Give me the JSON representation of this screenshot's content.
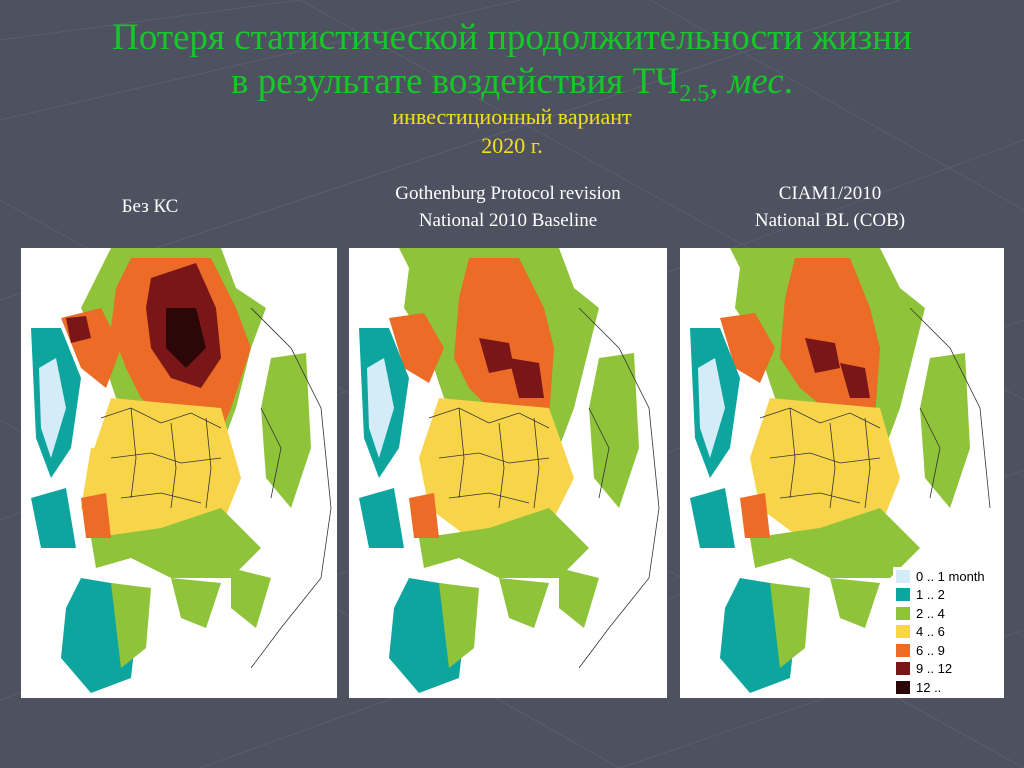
{
  "slide": {
    "title_line1": "Потеря статистической продолжительности жизни",
    "title_line2_pre": "в результате воздействия ТЧ",
    "title_line2_sub": "2.5",
    "title_line2_sep": ", ",
    "title_line2_italic": "мес",
    "title_line2_end": ".",
    "subtitle": "инвестиционный вариант",
    "year": "2020 г."
  },
  "maps": [
    {
      "label_line1": "Без КС",
      "label_line2": ""
    },
    {
      "label_line1": "Gothenburg Protocol revision",
      "label_line2": "National 2010 Baseline"
    },
    {
      "label_line1": "CIAM1/2010",
      "label_line2": "National BL (COB)"
    }
  ],
  "legend": [
    {
      "label": "0 .. 1 month",
      "color": "#d4ecf7"
    },
    {
      "label": "1 .. 2",
      "color": "#0fa59f"
    },
    {
      "label": "2 .. 4",
      "color": "#8fc33a"
    },
    {
      "label": "4 .. 6",
      "color": "#f7d44a"
    },
    {
      "label": "6 .. 9",
      "color": "#ec6b26"
    },
    {
      "label": "9 .. 12",
      "color": "#7a1518"
    },
    {
      "label": "12 ..",
      "color": "#2b0708"
    }
  ],
  "colors": {
    "title": "#16c72a",
    "subtitle": "#f2e11a",
    "background": "#4d5160"
  }
}
